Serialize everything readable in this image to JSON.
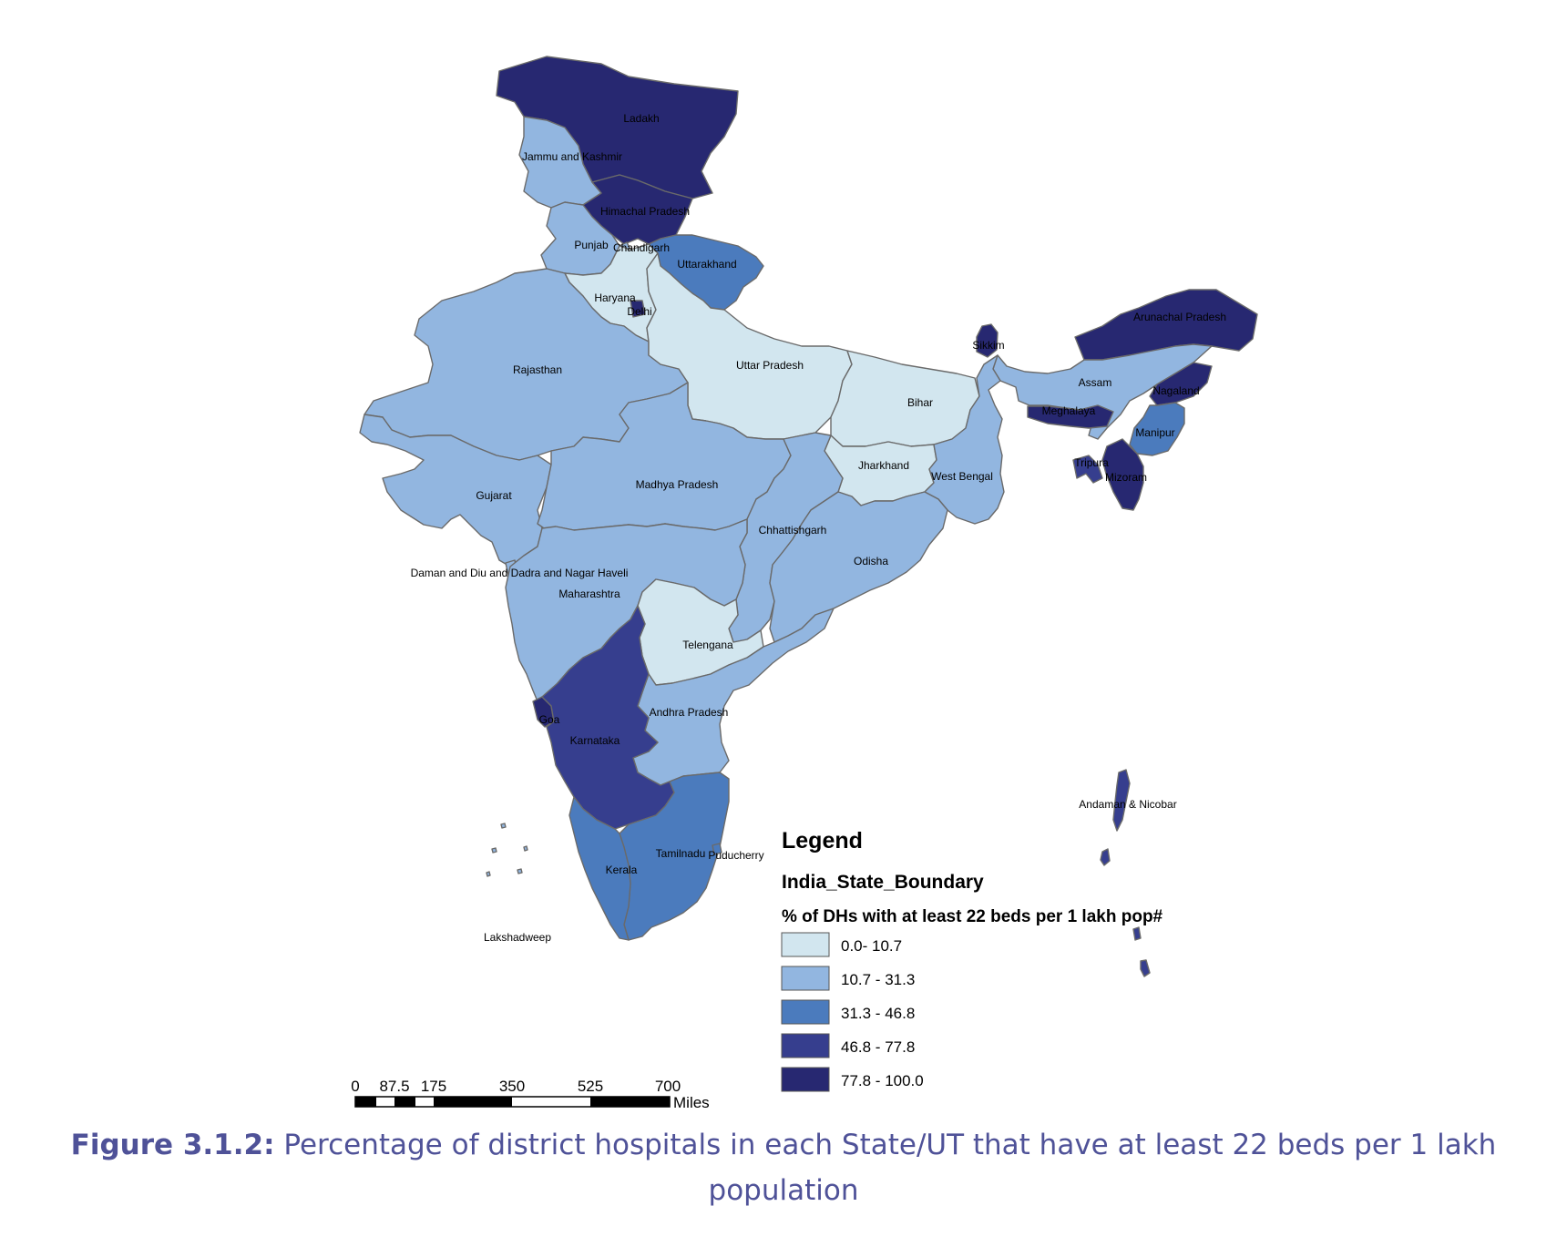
{
  "map": {
    "legend": {
      "title": "Legend",
      "layer_name": "India_State_Boundary",
      "field_name": "% of DHs with at least 22 beds per 1 lakh pop#",
      "classes": [
        {
          "label": "0.0- 10.7",
          "color": "#d2e6ef"
        },
        {
          "label": "10.7 - 31.3",
          "color": "#92b6e0"
        },
        {
          "label": "31.3 - 46.8",
          "color": "#4b7bbd"
        },
        {
          "label": "46.8 - 77.8",
          "color": "#363e8e"
        },
        {
          "label": "77.8 - 100.0",
          "color": "#272871"
        }
      ]
    },
    "scale_bar": {
      "ticks": [
        "0",
        "87.5",
        "175",
        "350",
        "525",
        "700"
      ],
      "unit": "Miles"
    },
    "region_labels": {
      "ladakh": "Ladakh",
      "jammu_kashmir": "Jammu and Kashmir",
      "himachal": "Himachal Pradesh",
      "punjab": "Punjab",
      "chandigarh": "Chandigarh",
      "uttarakhand": "Uttarakhand",
      "haryana": "Haryana",
      "delhi": "Delhi",
      "rajasthan": "Rajasthan",
      "uttar_pradesh": "Uttar Pradesh",
      "bihar": "Bihar",
      "sikkim": "Sikkim",
      "arunachal": "Arunachal Pradesh",
      "assam": "Assam",
      "nagaland": "Nagaland",
      "meghalaya": "Meghalaya",
      "manipur": "Manipur",
      "tripura": "Tripura",
      "mizoram": "Mizoram",
      "jharkhand": "Jharkhand",
      "west_bengal": "West Bengal",
      "gujarat": "Gujarat",
      "madhya_pradesh": "Madhya Pradesh",
      "chhattisgarh": "Chhattishgarh",
      "odisha": "Odisha",
      "daman_diu": "Daman and Diu and Dadra and Nagar Haveli",
      "maharashtra": "Maharashtra",
      "telangana": "Telengana",
      "andhra": "Andhra Pradesh",
      "goa": "Goa",
      "karnataka": "Karnataka",
      "tamilnadu": "Tamilnadu",
      "puducherry": "Puducherry",
      "kerala": "Kerala",
      "lakshadweep": "Lakshadweep",
      "andaman": "Andaman & Nicobar"
    }
  },
  "caption": {
    "figure_number": "Figure 3.1.2:",
    "text": "Percentage of district hospitals in each State/UT that have at least 22 beds per 1 lakh population"
  }
}
